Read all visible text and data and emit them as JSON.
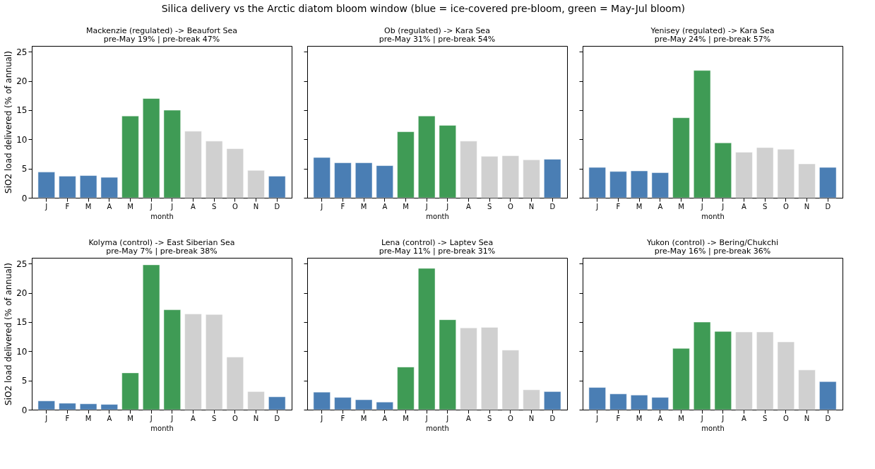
{
  "chart_data": [
    {
      "type": "bar",
      "title": "Mackenzie  (regulated) -> Beaufort Sea",
      "subtitle": "pre-May 19%  |  pre-break 47%",
      "annotations": [
        "Silica delivery vs the Arctic diatom bloom window  (blue = ice-covered pre-bloom, green = May-Jul bloom)"
      ],
      "xlabel": "month",
      "ylabel": "SiO2 load delivered (% of annual)",
      "categories": [
        "J",
        "F",
        "M",
        "A",
        "M",
        "J",
        "J",
        "A",
        "S",
        "O",
        "N",
        "D"
      ],
      "values": [
        4.4,
        3.7,
        3.8,
        3.5,
        14.0,
        17.0,
        15.0,
        11.4,
        9.7,
        8.4,
        4.7,
        3.7
      ],
      "colors": [
        "#4a7eb4",
        "#4a7eb4",
        "#4a7eb4",
        "#4a7eb4",
        "#3f9b55",
        "#3f9b55",
        "#3f9b55",
        "#d0d0d0",
        "#d0d0d0",
        "#d0d0d0",
        "#d0d0d0",
        "#4a7eb4"
      ],
      "ylim": [
        0,
        26
      ],
      "yticks": [
        0,
        5,
        10,
        15,
        20,
        25
      ],
      "grid": false
    },
    {
      "type": "bar",
      "title": "Ob  (regulated) -> Kara Sea",
      "subtitle": "pre-May 31%  |  pre-break 54%",
      "xlabel": "month",
      "categories": [
        "J",
        "F",
        "M",
        "A",
        "M",
        "J",
        "J",
        "A",
        "S",
        "O",
        "N",
        "D"
      ],
      "values": [
        6.9,
        6.0,
        6.0,
        5.5,
        11.3,
        14.0,
        12.4,
        9.7,
        7.1,
        7.2,
        6.5,
        6.6
      ],
      "colors": [
        "#4a7eb4",
        "#4a7eb4",
        "#4a7eb4",
        "#4a7eb4",
        "#3f9b55",
        "#3f9b55",
        "#3f9b55",
        "#d0d0d0",
        "#d0d0d0",
        "#d0d0d0",
        "#d0d0d0",
        "#4a7eb4"
      ],
      "ylim": [
        0,
        26
      ],
      "yticks": [
        0,
        5,
        10,
        15,
        20,
        25
      ],
      "tick_labels": "x",
      "grid": false
    },
    {
      "type": "bar",
      "title": "Yenisey  (regulated) -> Kara Sea",
      "subtitle": "pre-May 24%  |  pre-break 57%",
      "xlabel": "month",
      "categories": [
        "J",
        "F",
        "M",
        "A",
        "M",
        "J",
        "J",
        "A",
        "S",
        "O",
        "N",
        "D"
      ],
      "values": [
        5.2,
        4.5,
        4.6,
        4.3,
        13.7,
        21.8,
        9.4,
        7.8,
        8.6,
        8.3,
        5.8,
        5.2
      ],
      "colors": [
        "#4a7eb4",
        "#4a7eb4",
        "#4a7eb4",
        "#4a7eb4",
        "#3f9b55",
        "#3f9b55",
        "#3f9b55",
        "#d0d0d0",
        "#d0d0d0",
        "#d0d0d0",
        "#d0d0d0",
        "#4a7eb4"
      ],
      "ylim": [
        0,
        26
      ],
      "yticks": [
        0,
        5,
        10,
        15,
        20,
        25
      ],
      "tick_labels": "x",
      "grid": false
    },
    {
      "type": "bar",
      "title": "Kolyma  (control) -> East Siberian Sea",
      "subtitle": "pre-May 7%  |  pre-break 38%",
      "xlabel": "month",
      "ylabel": "SiO2 load delivered (% of annual)",
      "categories": [
        "J",
        "F",
        "M",
        "A",
        "M",
        "J",
        "J",
        "A",
        "S",
        "O",
        "N",
        "D"
      ],
      "values": [
        1.5,
        1.1,
        1.0,
        0.9,
        6.3,
        24.8,
        17.1,
        16.4,
        16.3,
        9.0,
        3.1,
        2.2
      ],
      "colors": [
        "#4a7eb4",
        "#4a7eb4",
        "#4a7eb4",
        "#4a7eb4",
        "#3f9b55",
        "#3f9b55",
        "#3f9b55",
        "#d0d0d0",
        "#d0d0d0",
        "#d0d0d0",
        "#d0d0d0",
        "#4a7eb4"
      ],
      "ylim": [
        0,
        26
      ],
      "yticks": [
        0,
        5,
        10,
        15,
        20,
        25
      ],
      "grid": false
    },
    {
      "type": "bar",
      "title": "Lena  (control) -> Laptev Sea",
      "subtitle": "pre-May 11%  |  pre-break 31%",
      "xlabel": "month",
      "categories": [
        "J",
        "F",
        "M",
        "A",
        "M",
        "J",
        "J",
        "A",
        "S",
        "O",
        "N",
        "D"
      ],
      "values": [
        3.0,
        2.1,
        1.7,
        1.3,
        7.3,
        24.2,
        15.4,
        14.0,
        14.1,
        10.2,
        3.4,
        3.1
      ],
      "colors": [
        "#4a7eb4",
        "#4a7eb4",
        "#4a7eb4",
        "#4a7eb4",
        "#3f9b55",
        "#3f9b55",
        "#3f9b55",
        "#d0d0d0",
        "#d0d0d0",
        "#d0d0d0",
        "#d0d0d0",
        "#4a7eb4"
      ],
      "ylim": [
        0,
        26
      ],
      "yticks": [
        0,
        5,
        10,
        15,
        20,
        25
      ],
      "tick_labels": "x",
      "grid": false
    },
    {
      "type": "bar",
      "title": "Yukon  (control) -> Bering/Chukchi",
      "subtitle": "pre-May 16%  |  pre-break 36%",
      "xlabel": "month",
      "categories": [
        "J",
        "F",
        "M",
        "A",
        "M",
        "J",
        "J",
        "A",
        "S",
        "O",
        "N",
        "D"
      ],
      "values": [
        3.8,
        2.7,
        2.5,
        2.1,
        10.5,
        15.0,
        13.4,
        13.3,
        13.3,
        11.6,
        6.8,
        4.8
      ],
      "colors": [
        "#4a7eb4",
        "#4a7eb4",
        "#4a7eb4",
        "#4a7eb4",
        "#3f9b55",
        "#3f9b55",
        "#3f9b55",
        "#d0d0d0",
        "#d0d0d0",
        "#d0d0d0",
        "#d0d0d0",
        "#4a7eb4"
      ],
      "ylim": [
        0,
        26
      ],
      "yticks": [
        0,
        5,
        10,
        15,
        20,
        25
      ],
      "tick_labels": "x",
      "grid": false
    }
  ]
}
